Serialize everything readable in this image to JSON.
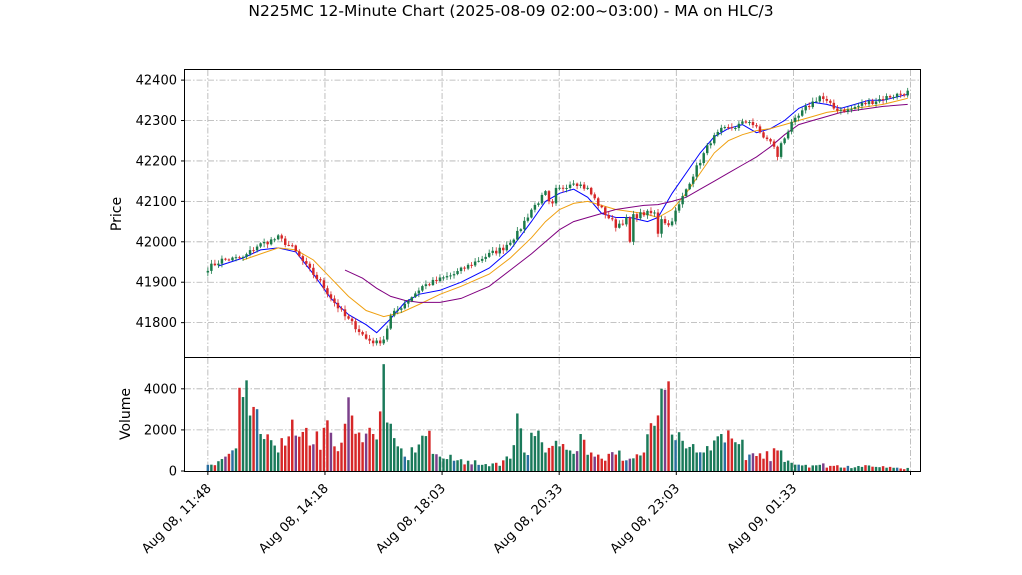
{
  "chart_data": {
    "type": "candlestick",
    "title": "N225MC 12-Minute Chart (2025-08-09 02:00~03:00) - MA on HLC/3",
    "price_panel": {
      "ylabel": "Price",
      "ylim": [
        41715,
        42425
      ],
      "yticks": [
        41800,
        41900,
        42000,
        42100,
        42200,
        42300,
        42400
      ],
      "ytick_labels": [
        "41800",
        "41900",
        "42000",
        "42100",
        "42200",
        "42300",
        "42400"
      ],
      "grid": true
    },
    "volume_panel": {
      "ylabel": "Volume",
      "ylim": [
        0,
        5500
      ],
      "yticks": [
        0,
        2000,
        4000
      ],
      "ytick_labels": [
        "0",
        "2000",
        "4000"
      ],
      "grid": true
    },
    "xlim": [
      -6.5,
      202.5
    ],
    "xticks": [
      0,
      33.3,
      66.6,
      99.9,
      133.2,
      166.5,
      199.8
    ],
    "xtick_labels": [
      "Aug 08, 11:48",
      "Aug 08, 14:18",
      "Aug 08, 18:03",
      "Aug 08, 20:33",
      "Aug 08, 23:03",
      "Aug 09, 01:33",
      ""
    ],
    "candles": {
      "count": 200,
      "up_color": "#1a7a4a",
      "down_color": "#d62728",
      "anchor_index": [
        0,
        4,
        10,
        14,
        20,
        24,
        28,
        32,
        36,
        39,
        42,
        45,
        48,
        50,
        52,
        55,
        58,
        61,
        64,
        67,
        70,
        73,
        78,
        84,
        88,
        92,
        96,
        100,
        104,
        108,
        112,
        116,
        120,
        124,
        128,
        131,
        134,
        137,
        140,
        143,
        146,
        150,
        154,
        158,
        162,
        166,
        170,
        174,
        178,
        182,
        186,
        190,
        194,
        199
      ],
      "anchor_close": [
        41935,
        41955,
        41960,
        41990,
        42010,
        41985,
        41940,
        41900,
        41850,
        41815,
        41790,
        41760,
        41750,
        41760,
        41815,
        41840,
        41865,
        41890,
        41900,
        41910,
        41920,
        41935,
        41960,
        41985,
        42020,
        42080,
        42120,
        42130,
        42150,
        42130,
        42080,
        42040,
        42060,
        42070,
        42070,
        42040,
        42090,
        42150,
        42200,
        42250,
        42275,
        42285,
        42300,
        42260,
        42230,
        42290,
        42330,
        42360,
        42330,
        42325,
        42340,
        42350,
        42360,
        42370
      ],
      "spike_index": [
        97,
        98,
        120,
        128,
        162
      ],
      "spike_close": [
        42100,
        42095,
        42000,
        42020,
        42210
      ]
    },
    "series": [
      {
        "name": "",
        "color": "#0000ff",
        "start": 3,
        "x": [
          3,
          10,
          15,
          20,
          25,
          30,
          35,
          40,
          45,
          48,
          52,
          56,
          60,
          66,
          72,
          80,
          86,
          92,
          96,
          100,
          104,
          108,
          112,
          116,
          120,
          125,
          128,
          132,
          136,
          140,
          144,
          148,
          152,
          156,
          160,
          164,
          168,
          172,
          176,
          180,
          184,
          188,
          192,
          199
        ],
        "y": [
          41940,
          41960,
          41980,
          41985,
          41975,
          41920,
          41860,
          41820,
          41795,
          41775,
          41810,
          41850,
          41870,
          41880,
          41900,
          41935,
          41980,
          42050,
          42100,
          42120,
          42130,
          42110,
          42070,
          42060,
          42060,
          42050,
          42060,
          42120,
          42170,
          42220,
          42260,
          42280,
          42290,
          42270,
          42280,
          42300,
          42330,
          42345,
          42340,
          42330,
          42340,
          42350,
          42350,
          42365
        ]
      },
      {
        "name": "",
        "color": "#f0a010",
        "start": 10,
        "x": [
          10,
          15,
          20,
          25,
          30,
          35,
          40,
          45,
          50,
          55,
          60,
          66,
          72,
          80,
          86,
          92,
          96,
          100,
          104,
          108,
          112,
          116,
          120,
          124,
          128,
          132,
          136,
          140,
          144,
          148,
          152,
          156,
          160,
          164,
          168,
          172,
          176,
          180,
          184,
          188,
          192,
          199
        ],
        "y": [
          41955,
          41970,
          41985,
          41980,
          41955,
          41910,
          41865,
          41830,
          41815,
          41825,
          41845,
          41870,
          41890,
          41920,
          41960,
          42010,
          42050,
          42080,
          42095,
          42100,
          42090,
          42080,
          42075,
          42070,
          42060,
          42080,
          42120,
          42170,
          42220,
          42250,
          42265,
          42275,
          42280,
          42290,
          42300,
          42310,
          42320,
          42325,
          42330,
          42335,
          42340,
          42355
        ]
      },
      {
        "name": "",
        "color": "#800080",
        "start": 39,
        "x": [
          39,
          44,
          48,
          52,
          56,
          60,
          66,
          72,
          80,
          86,
          92,
          96,
          100,
          104,
          108,
          112,
          116,
          120,
          124,
          128,
          132,
          136,
          140,
          144,
          148,
          152,
          156,
          160,
          164,
          168,
          172,
          176,
          180,
          184,
          188,
          192,
          199
        ],
        "y": [
          41930,
          41910,
          41885,
          41865,
          41855,
          41850,
          41850,
          41860,
          41890,
          41930,
          41970,
          42000,
          42030,
          42050,
          42060,
          42070,
          42080,
          42085,
          42090,
          42092,
          42100,
          42110,
          42130,
          42150,
          42170,
          42190,
          42210,
          42235,
          42265,
          42290,
          42300,
          42310,
          42320,
          42325,
          42330,
          42335,
          42340
        ]
      }
    ],
    "volume": {
      "anchor_index": [
        0,
        5,
        8,
        9,
        10,
        12,
        15,
        18,
        21,
        24,
        27,
        30,
        33,
        36,
        39,
        41,
        44,
        47,
        49,
        50,
        52,
        54,
        56,
        59,
        62,
        66,
        70,
        74,
        78,
        82,
        86,
        88,
        90,
        93,
        96,
        100,
        103,
        106,
        109,
        112,
        116,
        120,
        124,
        127,
        129,
        130,
        133,
        136,
        139,
        143,
        146,
        150,
        154,
        158,
        162,
        166,
        170,
        174,
        178,
        182,
        186,
        190,
        194,
        199
      ],
      "anchor_vol": [
        300,
        700,
        1100,
        4050,
        3600,
        2700,
        1800,
        1500,
        1600,
        2500,
        1900,
        1300,
        2100,
        1200,
        2300,
        2700,
        1400,
        1800,
        2900,
        5200,
        2300,
        1200,
        700,
        900,
        1700,
        700,
        500,
        500,
        300,
        400,
        600,
        2800,
        900,
        1700,
        900,
        1200,
        1000,
        1800,
        900,
        600,
        800,
        600,
        900,
        2200,
        4000,
        3950,
        1500,
        1100,
        900,
        1000,
        1800,
        1400,
        800,
        600,
        1000,
        400,
        300,
        300,
        250,
        250,
        200,
        200,
        200,
        150
      ]
    }
  }
}
